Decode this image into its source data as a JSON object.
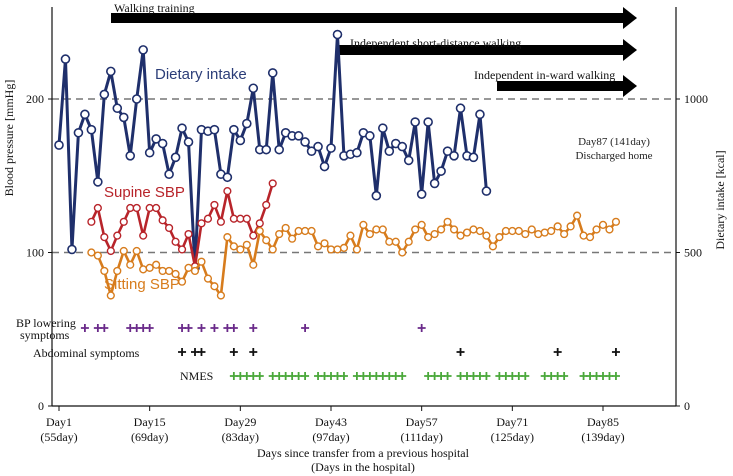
{
  "chart_data": {
    "type": "line",
    "title": "",
    "xlabel": "Days since transfer from a previous hospital",
    "xlabel_sub": "(Days in the hospital)",
    "ylabel_left": "Blood pressure [mmHg]",
    "ylabel_right": "Dietary intake [kcal]",
    "xlim": [
      1,
      95
    ],
    "ylim_left": [
      0,
      250
    ],
    "ylim_right": [
      0,
      1250
    ],
    "x_ticks": [
      {
        "day": 1,
        "label": "Day1",
        "sub": "(55day)"
      },
      {
        "day": 15,
        "label": "Day15",
        "sub": "(69day)"
      },
      {
        "day": 29,
        "label": "Day29",
        "sub": "(83day)"
      },
      {
        "day": 43,
        "label": "Day43",
        "sub": "(97day)"
      },
      {
        "day": 57,
        "label": "Day57",
        "sub": "(111day)"
      },
      {
        "day": 71,
        "label": "Day71",
        "sub": "(125day)"
      },
      {
        "day": 85,
        "label": "Day85",
        "sub": "(139day)"
      }
    ],
    "y_ticks_left": [
      "0",
      "100",
      "200"
    ],
    "y_ticks_right": [
      "0",
      "500",
      "1000"
    ],
    "y_tick_values_left": [
      0,
      100,
      200
    ],
    "y_tick_values_right": [
      0,
      500,
      1000
    ],
    "reference_lines": [
      100,
      200
    ],
    "series": [
      {
        "name": "Dietary intake",
        "axis": "right",
        "color": "#1f2f6b",
        "x": [
          1,
          2,
          3,
          4,
          5,
          6,
          7,
          8,
          9,
          10,
          11,
          12,
          13,
          14,
          15,
          16,
          17,
          18,
          19,
          20,
          21,
          22,
          23,
          24,
          25,
          26,
          27,
          28,
          29,
          30,
          31,
          32,
          33,
          34,
          35,
          36,
          37,
          38,
          39,
          40,
          41,
          42,
          43,
          44,
          45,
          46,
          47,
          48,
          49,
          50,
          51,
          52,
          53,
          54,
          55,
          56,
          57,
          58,
          59,
          60,
          61,
          62,
          63,
          64,
          65,
          66,
          67
        ],
        "values": [
          850,
          1130,
          510,
          890,
          950,
          900,
          730,
          1015,
          1090,
          970,
          940,
          815,
          1000,
          1160,
          825,
          870,
          855,
          755,
          810,
          905,
          860,
          450,
          900,
          895,
          900,
          755,
          745,
          900,
          865,
          920,
          1035,
          835,
          835,
          1085,
          835,
          890,
          880,
          880,
          860,
          830,
          845,
          780,
          840,
          1210,
          815,
          820,
          825,
          890,
          880,
          685,
          905,
          830,
          855,
          845,
          800,
          925,
          690,
          925,
          725,
          765,
          830,
          815,
          970,
          815,
          810,
          950,
          700
        ]
      },
      {
        "name": "Supine SBP",
        "axis": "left",
        "color": "#b8242a",
        "x": [
          6,
          7,
          8,
          9,
          10,
          11,
          12,
          13,
          14,
          15,
          16,
          17,
          18,
          19,
          20,
          21,
          22,
          23,
          24,
          25,
          26,
          27,
          28,
          29,
          30,
          31,
          32,
          33,
          34
        ],
        "values": [
          120,
          129,
          110,
          101,
          111,
          120,
          129,
          129,
          111,
          129,
          129,
          121,
          116,
          107,
          102,
          112,
          91,
          119,
          122,
          131,
          120,
          140,
          122,
          122,
          122,
          111,
          119,
          131,
          145
        ]
      },
      {
        "name": "Sitting SBP",
        "axis": "left",
        "color": "#d77c1d",
        "x": [
          6,
          7,
          8,
          9,
          10,
          11,
          12,
          13,
          14,
          15,
          16,
          17,
          18,
          19,
          20,
          21,
          22,
          23,
          24,
          25,
          26,
          27,
          28,
          29,
          30,
          31,
          32,
          33,
          34,
          35,
          36,
          37,
          38,
          39,
          40,
          41,
          42,
          43,
          44,
          45,
          46,
          47,
          48,
          49,
          50,
          51,
          52,
          53,
          54,
          55,
          56,
          57,
          58,
          59,
          60,
          61,
          62,
          63,
          64,
          65,
          66,
          67,
          68,
          69,
          70,
          71,
          72,
          73,
          74,
          75,
          76,
          77,
          78,
          79,
          80,
          81,
          82,
          83,
          84,
          85,
          86,
          87
        ],
        "values": [
          100,
          98,
          88,
          72,
          88,
          101,
          92,
          101,
          89,
          90,
          92,
          88,
          88,
          86,
          81,
          90,
          88,
          94,
          83,
          78,
          72,
          110,
          104,
          102,
          105,
          92,
          114,
          108,
          102,
          112,
          116,
          109,
          114,
          114,
          114,
          104,
          106,
          102,
          102,
          103,
          111,
          102,
          118,
          112,
          115,
          115,
          107,
          107,
          100,
          107,
          115,
          118,
          110,
          112,
          115,
          120,
          115,
          111,
          113,
          115,
          114,
          111,
          104,
          110,
          114,
          114,
          114,
          112,
          115,
          112,
          113,
          114,
          117,
          112,
          117,
          124,
          111,
          110,
          115,
          118,
          115,
          120
        ]
      }
    ],
    "annotations": {
      "walking_training": "Walking training",
      "independent_short": "Independent short-distance walking",
      "independent_ward": "Independent in-ward walking",
      "discharge_line1": "Day87 (141day)",
      "discharge_line2": "Discharged home",
      "dietary_label": "Dietary intake",
      "supine_label": "Supine SBP",
      "sitting_label": "Sitting SBP"
    },
    "arrows": [
      {
        "name": "walking-training-arrow",
        "start_day": 10,
        "end_day": 95,
        "level": 1
      },
      {
        "name": "independent-short-walking-arrow",
        "start_day": 43,
        "end_day": 95,
        "level": 2
      },
      {
        "name": "independent-ward-walking-arrow",
        "start_day": 71,
        "end_day": 95,
        "level": 3
      }
    ],
    "events": {
      "bp_lowering_label_1": "BP lowering",
      "bp_lowering_label_2": "symptoms",
      "abdominal_label": "Abdominal symptoms",
      "nmes_label": "NMES",
      "bp_lowering_days": [
        5,
        7,
        8,
        12,
        13,
        14,
        15,
        20,
        21,
        23,
        25,
        27,
        28,
        31,
        39,
        57
      ],
      "bp_lowering_color": "#6a2a8a",
      "abdominal_days": [
        20,
        22,
        23,
        28,
        31,
        63,
        78,
        87
      ],
      "abdominal_color": "#111111",
      "nmes_days": [
        28,
        29,
        30,
        31,
        32,
        34,
        35,
        36,
        37,
        38,
        39,
        41,
        42,
        43,
        44,
        45,
        47,
        48,
        49,
        50,
        51,
        52,
        53,
        54,
        58,
        59,
        60,
        61,
        63,
        64,
        65,
        66,
        67,
        69,
        70,
        71,
        72,
        73,
        76,
        77,
        78,
        79,
        82,
        83,
        84,
        85,
        86,
        87
      ],
      "nmes_color": "#4aa83a"
    }
  }
}
